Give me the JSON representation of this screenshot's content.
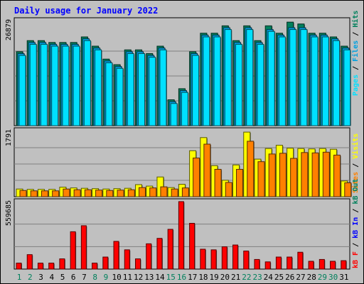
{
  "chart_data": [
    {
      "type": "bar",
      "title": "Daily usage for January 2022",
      "panel": "hits-files-pages",
      "ymax_label": "26879",
      "ylim": [
        0,
        26879
      ],
      "categories": [
        "1",
        "2",
        "3",
        "4",
        "5",
        "6",
        "7",
        "8",
        "9",
        "10",
        "11",
        "12",
        "13",
        "14",
        "15",
        "16",
        "17",
        "18",
        "19",
        "20",
        "21",
        "22",
        "23",
        "24",
        "25",
        "26",
        "27",
        "28",
        "29",
        "30",
        "31"
      ],
      "weekend_days": [
        "1",
        "2",
        "8",
        "9",
        "15",
        "16",
        "22",
        "23",
        "29",
        "30"
      ],
      "series": [
        {
          "name": "Hits",
          "color": "#00805c",
          "values": [
            20000,
            23000,
            23000,
            22500,
            22500,
            22500,
            24000,
            21500,
            18000,
            16500,
            20500,
            20500,
            19500,
            21500,
            7000,
            10000,
            20000,
            25000,
            25000,
            27000,
            23000,
            27000,
            23000,
            27000,
            25000,
            28000,
            27500,
            25000,
            25000,
            24000,
            21500
          ]
        },
        {
          "name": "Files",
          "color": "#00a0e0",
          "values": [
            19500,
            22500,
            22500,
            22000,
            22000,
            22000,
            23500,
            21000,
            17500,
            16000,
            20000,
            20000,
            19000,
            21000,
            6500,
            9500,
            19500,
            24500,
            24500,
            26500,
            22500,
            26500,
            22500,
            26000,
            24500,
            26500,
            26500,
            24500,
            24500,
            23500,
            21000
          ]
        },
        {
          "name": "Pages",
          "color": "#00e0ff",
          "values": [
            19000,
            22000,
            22000,
            21500,
            21500,
            21500,
            23000,
            20500,
            17000,
            15500,
            19500,
            19500,
            18500,
            20500,
            6000,
            9000,
            19000,
            24000,
            24000,
            26000,
            22000,
            26000,
            22000,
            25500,
            24000,
            26000,
            26000,
            24000,
            24000,
            23000,
            20500
          ]
        }
      ]
    },
    {
      "type": "bar",
      "panel": "visits-sites",
      "ymax_label": "1791",
      "ylim": [
        0,
        1791
      ],
      "categories": [
        "1",
        "2",
        "3",
        "4",
        "5",
        "6",
        "7",
        "8",
        "9",
        "10",
        "11",
        "12",
        "13",
        "14",
        "15",
        "16",
        "17",
        "18",
        "19",
        "20",
        "21",
        "22",
        "23",
        "24",
        "25",
        "26",
        "27",
        "28",
        "29",
        "30",
        "31"
      ],
      "series": [
        {
          "name": "Visits",
          "color": "#ffff00",
          "values": [
            210,
            200,
            200,
            200,
            260,
            240,
            230,
            220,
            210,
            220,
            230,
            330,
            290,
            540,
            250,
            340,
            1260,
            1620,
            850,
            450,
            870,
            1770,
            1030,
            1320,
            1410,
            1330,
            1320,
            1310,
            1320,
            1300,
            430
          ]
        },
        {
          "name": "Sites",
          "color": "#ff8000",
          "values": [
            170,
            160,
            160,
            160,
            210,
            190,
            190,
            180,
            170,
            180,
            190,
            250,
            240,
            270,
            210,
            240,
            1060,
            1440,
            750,
            390,
            750,
            1520,
            960,
            1170,
            1190,
            1050,
            1210,
            1200,
            1220,
            1140,
            380
          ]
        }
      ]
    },
    {
      "type": "bar",
      "panel": "kbytes",
      "ymax_label": "559685",
      "ylim": [
        0,
        559685
      ],
      "categories": [
        "1",
        "2",
        "3",
        "4",
        "5",
        "6",
        "7",
        "8",
        "9",
        "10",
        "11",
        "12",
        "13",
        "14",
        "15",
        "16",
        "17",
        "18",
        "19",
        "20",
        "21",
        "22",
        "23",
        "24",
        "25",
        "26",
        "27",
        "28",
        "29",
        "30",
        "31"
      ],
      "series": [
        {
          "name": "kB F",
          "color": "#ff0000",
          "values": [
            50000,
            120000,
            50000,
            50000,
            85000,
            310000,
            360000,
            50000,
            100000,
            230000,
            160000,
            85000,
            210000,
            255000,
            330000,
            560000,
            380000,
            165000,
            160000,
            185000,
            200000,
            150000,
            80000,
            60000,
            100000,
            100000,
            140000,
            65000,
            80000,
            65000,
            70000
          ]
        }
      ]
    }
  ],
  "right_labels": {
    "pages": "Pages",
    "files": "Files",
    "hits": "Hits",
    "sep": " / ",
    "visits": "Visits",
    "sites": "Sites",
    "kbf": "kB F",
    "kbin": "kB In",
    "kbout": "kB Out"
  },
  "colors": {
    "background": "#c0c0c0",
    "title": "#0000ff",
    "weekday_label": "#000000",
    "weekend_label": "#00805c",
    "kbin": "#0000ff",
    "kbout": "#00805c"
  }
}
